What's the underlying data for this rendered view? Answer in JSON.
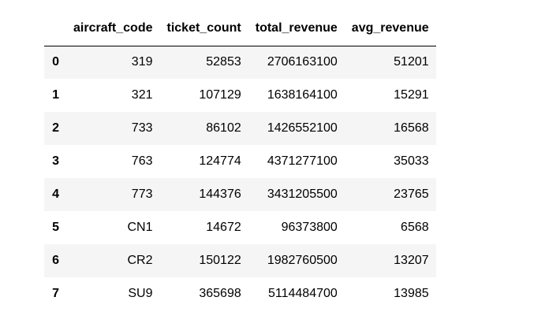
{
  "table": {
    "index_header": "",
    "columns": [
      "aircraft_code",
      "ticket_count",
      "total_revenue",
      "avg_revenue"
    ],
    "rows": [
      {
        "index": "0",
        "aircraft_code": "319",
        "ticket_count": "52853",
        "total_revenue": "2706163100",
        "avg_revenue": "51201"
      },
      {
        "index": "1",
        "aircraft_code": "321",
        "ticket_count": "107129",
        "total_revenue": "1638164100",
        "avg_revenue": "15291"
      },
      {
        "index": "2",
        "aircraft_code": "733",
        "ticket_count": "86102",
        "total_revenue": "1426552100",
        "avg_revenue": "16568"
      },
      {
        "index": "3",
        "aircraft_code": "763",
        "ticket_count": "124774",
        "total_revenue": "4371277100",
        "avg_revenue": "35033"
      },
      {
        "index": "4",
        "aircraft_code": "773",
        "ticket_count": "144376",
        "total_revenue": "3431205500",
        "avg_revenue": "23765"
      },
      {
        "index": "5",
        "aircraft_code": "CN1",
        "ticket_count": "14672",
        "total_revenue": "96373800",
        "avg_revenue": "6568"
      },
      {
        "index": "6",
        "aircraft_code": "CR2",
        "ticket_count": "150122",
        "total_revenue": "1982760500",
        "avg_revenue": "13207"
      },
      {
        "index": "7",
        "aircraft_code": "SU9",
        "ticket_count": "365698",
        "total_revenue": "5114484700",
        "avg_revenue": "13985"
      }
    ]
  },
  "colors": {
    "striped_row": "#f5f5f5",
    "plain_row": "#ffffff",
    "header_rule": "#000000",
    "text": "#000000"
  }
}
